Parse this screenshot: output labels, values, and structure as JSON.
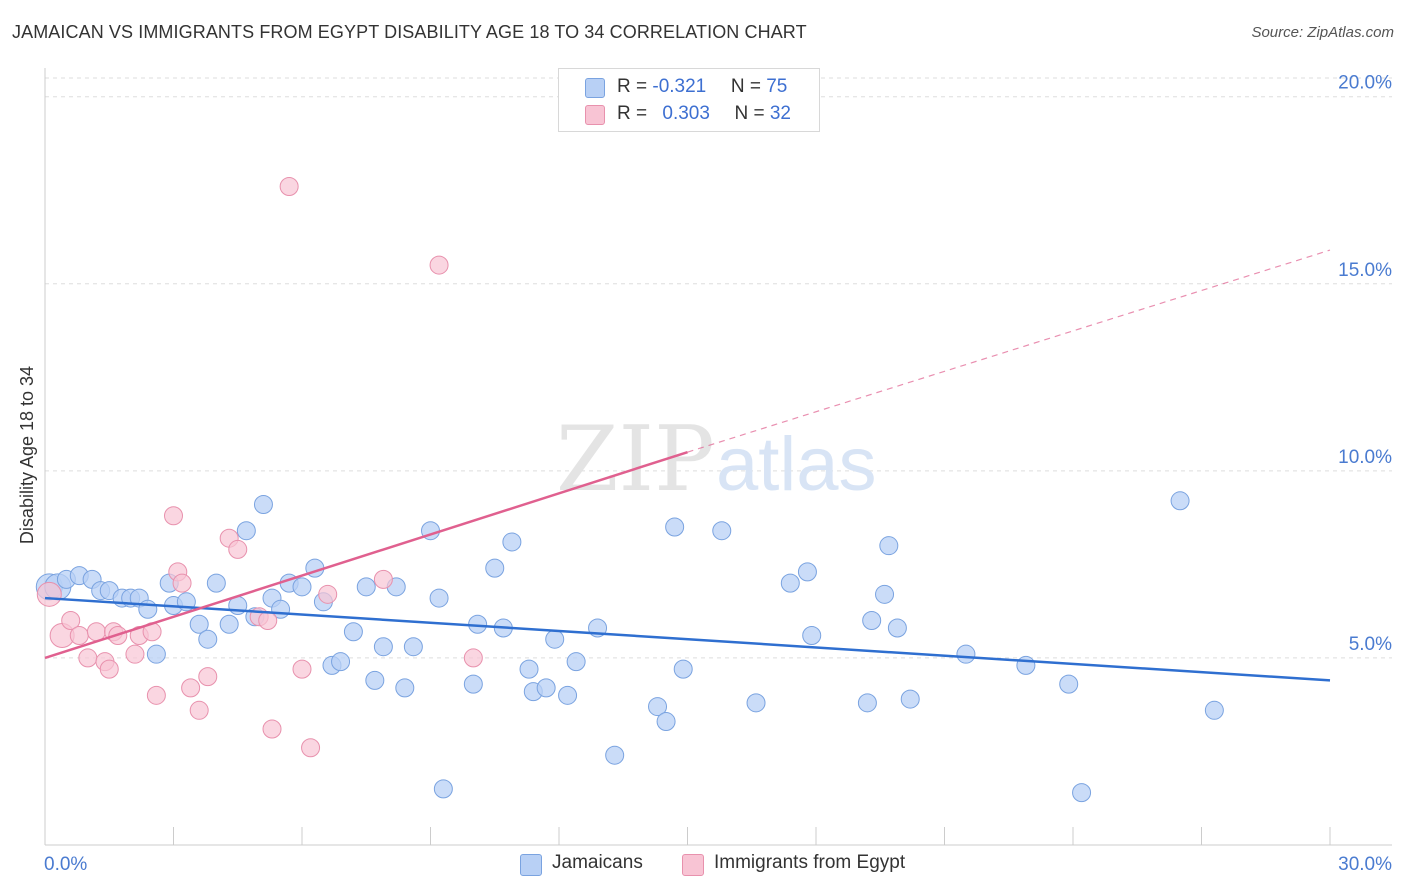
{
  "header": {
    "title": "JAMAICAN VS IMMIGRANTS FROM EGYPT DISABILITY AGE 18 TO 34 CORRELATION CHART",
    "source": "Source: ZipAtlas.com"
  },
  "legend": {
    "rows": [
      {
        "r_label": "R = ",
        "r_value": "-0.321",
        "n_label": "N = ",
        "n_value": "75"
      },
      {
        "r_label": "R = ",
        "r_value": "0.303",
        "n_label": "N = ",
        "n_value": "32"
      }
    ]
  },
  "bottom_legend": {
    "series1": "Jamaicans",
    "series2": "Immigrants from Egypt"
  },
  "watermark": {
    "part1": "ZIP",
    "part2": "atlas"
  },
  "colors": {
    "blue_fill": "#b8d0f5",
    "blue_stroke": "#7aa3e0",
    "blue_line": "#2f6fd0",
    "pink_fill": "#f8c4d4",
    "pink_stroke": "#e891ad",
    "pink_line": "#e0608f",
    "grid": "#dddddd",
    "tick_text": "#4a7bd0"
  },
  "chart_data": {
    "type": "scatter",
    "title": "JAMAICAN VS IMMIGRANTS FROM EGYPT DISABILITY AGE 18 TO 34 CORRELATION CHART",
    "xlabel": "",
    "ylabel": "Disability Age 18 to 34",
    "xlim": [
      0,
      30
    ],
    "ylim": [
      0,
      20.5
    ],
    "x_tick_labels": [
      "0.0%",
      "30.0%"
    ],
    "y_ticks": [
      5,
      10,
      15,
      20
    ],
    "y_tick_labels": [
      "5.0%",
      "10.0%",
      "15.0%",
      "20.0%"
    ],
    "grid": "horizontal dashed",
    "legend_position": "top-center",
    "series": [
      {
        "name": "Jamaicans",
        "color": "#b8d0f5",
        "R": -0.321,
        "N": 75,
        "trend": {
          "x": [
            0,
            30
          ],
          "y": [
            6.6,
            4.4
          ],
          "style": "solid"
        },
        "points": [
          [
            0.1,
            6.9
          ],
          [
            0.3,
            6.9
          ],
          [
            0.5,
            7.1
          ],
          [
            0.8,
            7.2
          ],
          [
            1.1,
            7.1
          ],
          [
            1.3,
            6.8
          ],
          [
            1.5,
            6.8
          ],
          [
            1.8,
            6.6
          ],
          [
            2.0,
            6.6
          ],
          [
            2.2,
            6.6
          ],
          [
            2.4,
            6.3
          ],
          [
            2.6,
            5.1
          ],
          [
            2.9,
            7.0
          ],
          [
            3.0,
            6.4
          ],
          [
            3.3,
            6.5
          ],
          [
            3.6,
            5.9
          ],
          [
            3.8,
            5.5
          ],
          [
            4.0,
            7.0
          ],
          [
            4.3,
            5.9
          ],
          [
            4.5,
            6.4
          ],
          [
            4.7,
            8.4
          ],
          [
            4.9,
            6.1
          ],
          [
            5.1,
            9.1
          ],
          [
            5.3,
            6.6
          ],
          [
            5.5,
            6.3
          ],
          [
            5.7,
            7.0
          ],
          [
            6.0,
            6.9
          ],
          [
            6.3,
            7.4
          ],
          [
            6.5,
            6.5
          ],
          [
            6.7,
            4.8
          ],
          [
            6.9,
            4.9
          ],
          [
            7.2,
            5.7
          ],
          [
            7.5,
            6.9
          ],
          [
            7.7,
            4.4
          ],
          [
            7.9,
            5.3
          ],
          [
            8.2,
            6.9
          ],
          [
            8.4,
            4.2
          ],
          [
            8.6,
            5.3
          ],
          [
            9.0,
            8.4
          ],
          [
            9.2,
            6.6
          ],
          [
            9.3,
            1.5
          ],
          [
            10.0,
            4.3
          ],
          [
            10.1,
            5.9
          ],
          [
            10.5,
            7.4
          ],
          [
            10.7,
            5.8
          ],
          [
            10.9,
            8.1
          ],
          [
            11.3,
            4.7
          ],
          [
            11.4,
            4.1
          ],
          [
            11.7,
            4.2
          ],
          [
            11.9,
            5.5
          ],
          [
            12.2,
            4.0
          ],
          [
            12.4,
            4.9
          ],
          [
            12.9,
            5.8
          ],
          [
            13.3,
            2.4
          ],
          [
            14.3,
            3.7
          ],
          [
            14.5,
            3.3
          ],
          [
            14.7,
            8.5
          ],
          [
            14.9,
            4.7
          ],
          [
            15.8,
            8.4
          ],
          [
            16.6,
            3.8
          ],
          [
            17.4,
            7.0
          ],
          [
            17.8,
            7.3
          ],
          [
            17.9,
            5.6
          ],
          [
            19.2,
            3.8
          ],
          [
            19.3,
            6.0
          ],
          [
            19.6,
            6.7
          ],
          [
            19.7,
            8.0
          ],
          [
            19.9,
            5.8
          ],
          [
            20.2,
            3.9
          ],
          [
            21.5,
            5.1
          ],
          [
            22.9,
            4.8
          ],
          [
            23.9,
            4.3
          ],
          [
            24.2,
            1.4
          ],
          [
            26.5,
            9.2
          ],
          [
            27.3,
            3.6
          ]
        ]
      },
      {
        "name": "Immigrants from Egypt",
        "color": "#f8c4d4",
        "R": 0.303,
        "N": 32,
        "trend": {
          "x": [
            0,
            15
          ],
          "y": [
            5.0,
            10.5
          ],
          "style": "solid",
          "extended": {
            "x": [
              15,
              30
            ],
            "y": [
              10.5,
              15.9
            ],
            "style": "dashed"
          }
        },
        "points": [
          [
            0.1,
            6.7
          ],
          [
            0.4,
            5.6
          ],
          [
            0.6,
            6.0
          ],
          [
            0.8,
            5.6
          ],
          [
            1.0,
            5.0
          ],
          [
            1.2,
            5.7
          ],
          [
            1.4,
            4.9
          ],
          [
            1.5,
            4.7
          ],
          [
            1.6,
            5.7
          ],
          [
            1.7,
            5.6
          ],
          [
            2.1,
            5.1
          ],
          [
            2.2,
            5.6
          ],
          [
            2.5,
            5.7
          ],
          [
            2.6,
            4.0
          ],
          [
            3.0,
            8.8
          ],
          [
            3.1,
            7.3
          ],
          [
            3.2,
            7.0
          ],
          [
            3.4,
            4.2
          ],
          [
            3.6,
            3.6
          ],
          [
            3.8,
            4.5
          ],
          [
            4.3,
            8.2
          ],
          [
            4.5,
            7.9
          ],
          [
            5.0,
            6.1
          ],
          [
            5.2,
            6.0
          ],
          [
            5.3,
            3.1
          ],
          [
            5.7,
            17.6
          ],
          [
            6.0,
            4.7
          ],
          [
            6.2,
            2.6
          ],
          [
            6.6,
            6.7
          ],
          [
            7.9,
            7.1
          ],
          [
            9.2,
            15.5
          ],
          [
            10.0,
            5.0
          ]
        ]
      }
    ]
  }
}
